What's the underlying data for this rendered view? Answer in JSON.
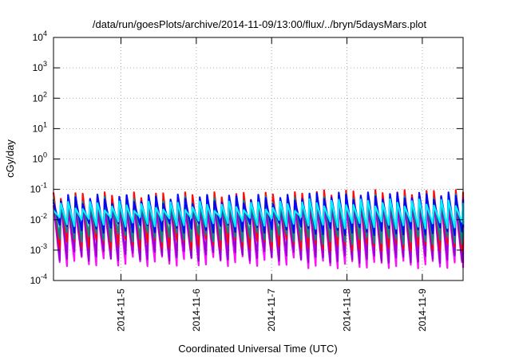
{
  "chart_data": {
    "type": "line",
    "title": "/data/run/goesPlots/archive/2014-11-09/13:00/flux/../bryn/5daysMars.plot",
    "xlabel": "Coordinated Universal Time (UTC)",
    "ylabel": "cGy/day",
    "y_scale": "log",
    "ylim": [
      0.0001,
      10000
    ],
    "xlim": [
      "2014-11-04T02:30",
      "2014-11-09T13:00"
    ],
    "x_ticks": [
      "2014-11-5",
      "2014-11-6",
      "2014-11-7",
      "2014-11-8",
      "2014-11-9"
    ],
    "y_ticks": [
      {
        "base": "10",
        "exp": "-4"
      },
      {
        "base": "10",
        "exp": "-3"
      },
      {
        "base": "10",
        "exp": "-2"
      },
      {
        "base": "10",
        "exp": "-1"
      },
      {
        "base": "10",
        "exp": "0"
      },
      {
        "base": "10",
        "exp": "1"
      },
      {
        "base": "10",
        "exp": "2"
      },
      {
        "base": "10",
        "exp": "3"
      },
      {
        "base": "10",
        "exp": "4"
      }
    ],
    "grid": true,
    "legend": false,
    "pattern": "sawtooth",
    "series": [
      {
        "color": "#ff00ff",
        "values": [
          0.03,
          0.0004
        ]
      },
      {
        "color": "#9400d3",
        "values": [
          0.035,
          0.0006
        ]
      },
      {
        "color": "#ff0000",
        "values": [
          0.06,
          0.0015
        ]
      },
      {
        "color": "#008b8b",
        "values": [
          0.045,
          0.0025
        ]
      },
      {
        "color": "#0000ff",
        "values": [
          0.05,
          0.005
        ]
      },
      {
        "color": "#00ffff",
        "values": [
          0.03,
          0.008
        ]
      }
    ]
  }
}
